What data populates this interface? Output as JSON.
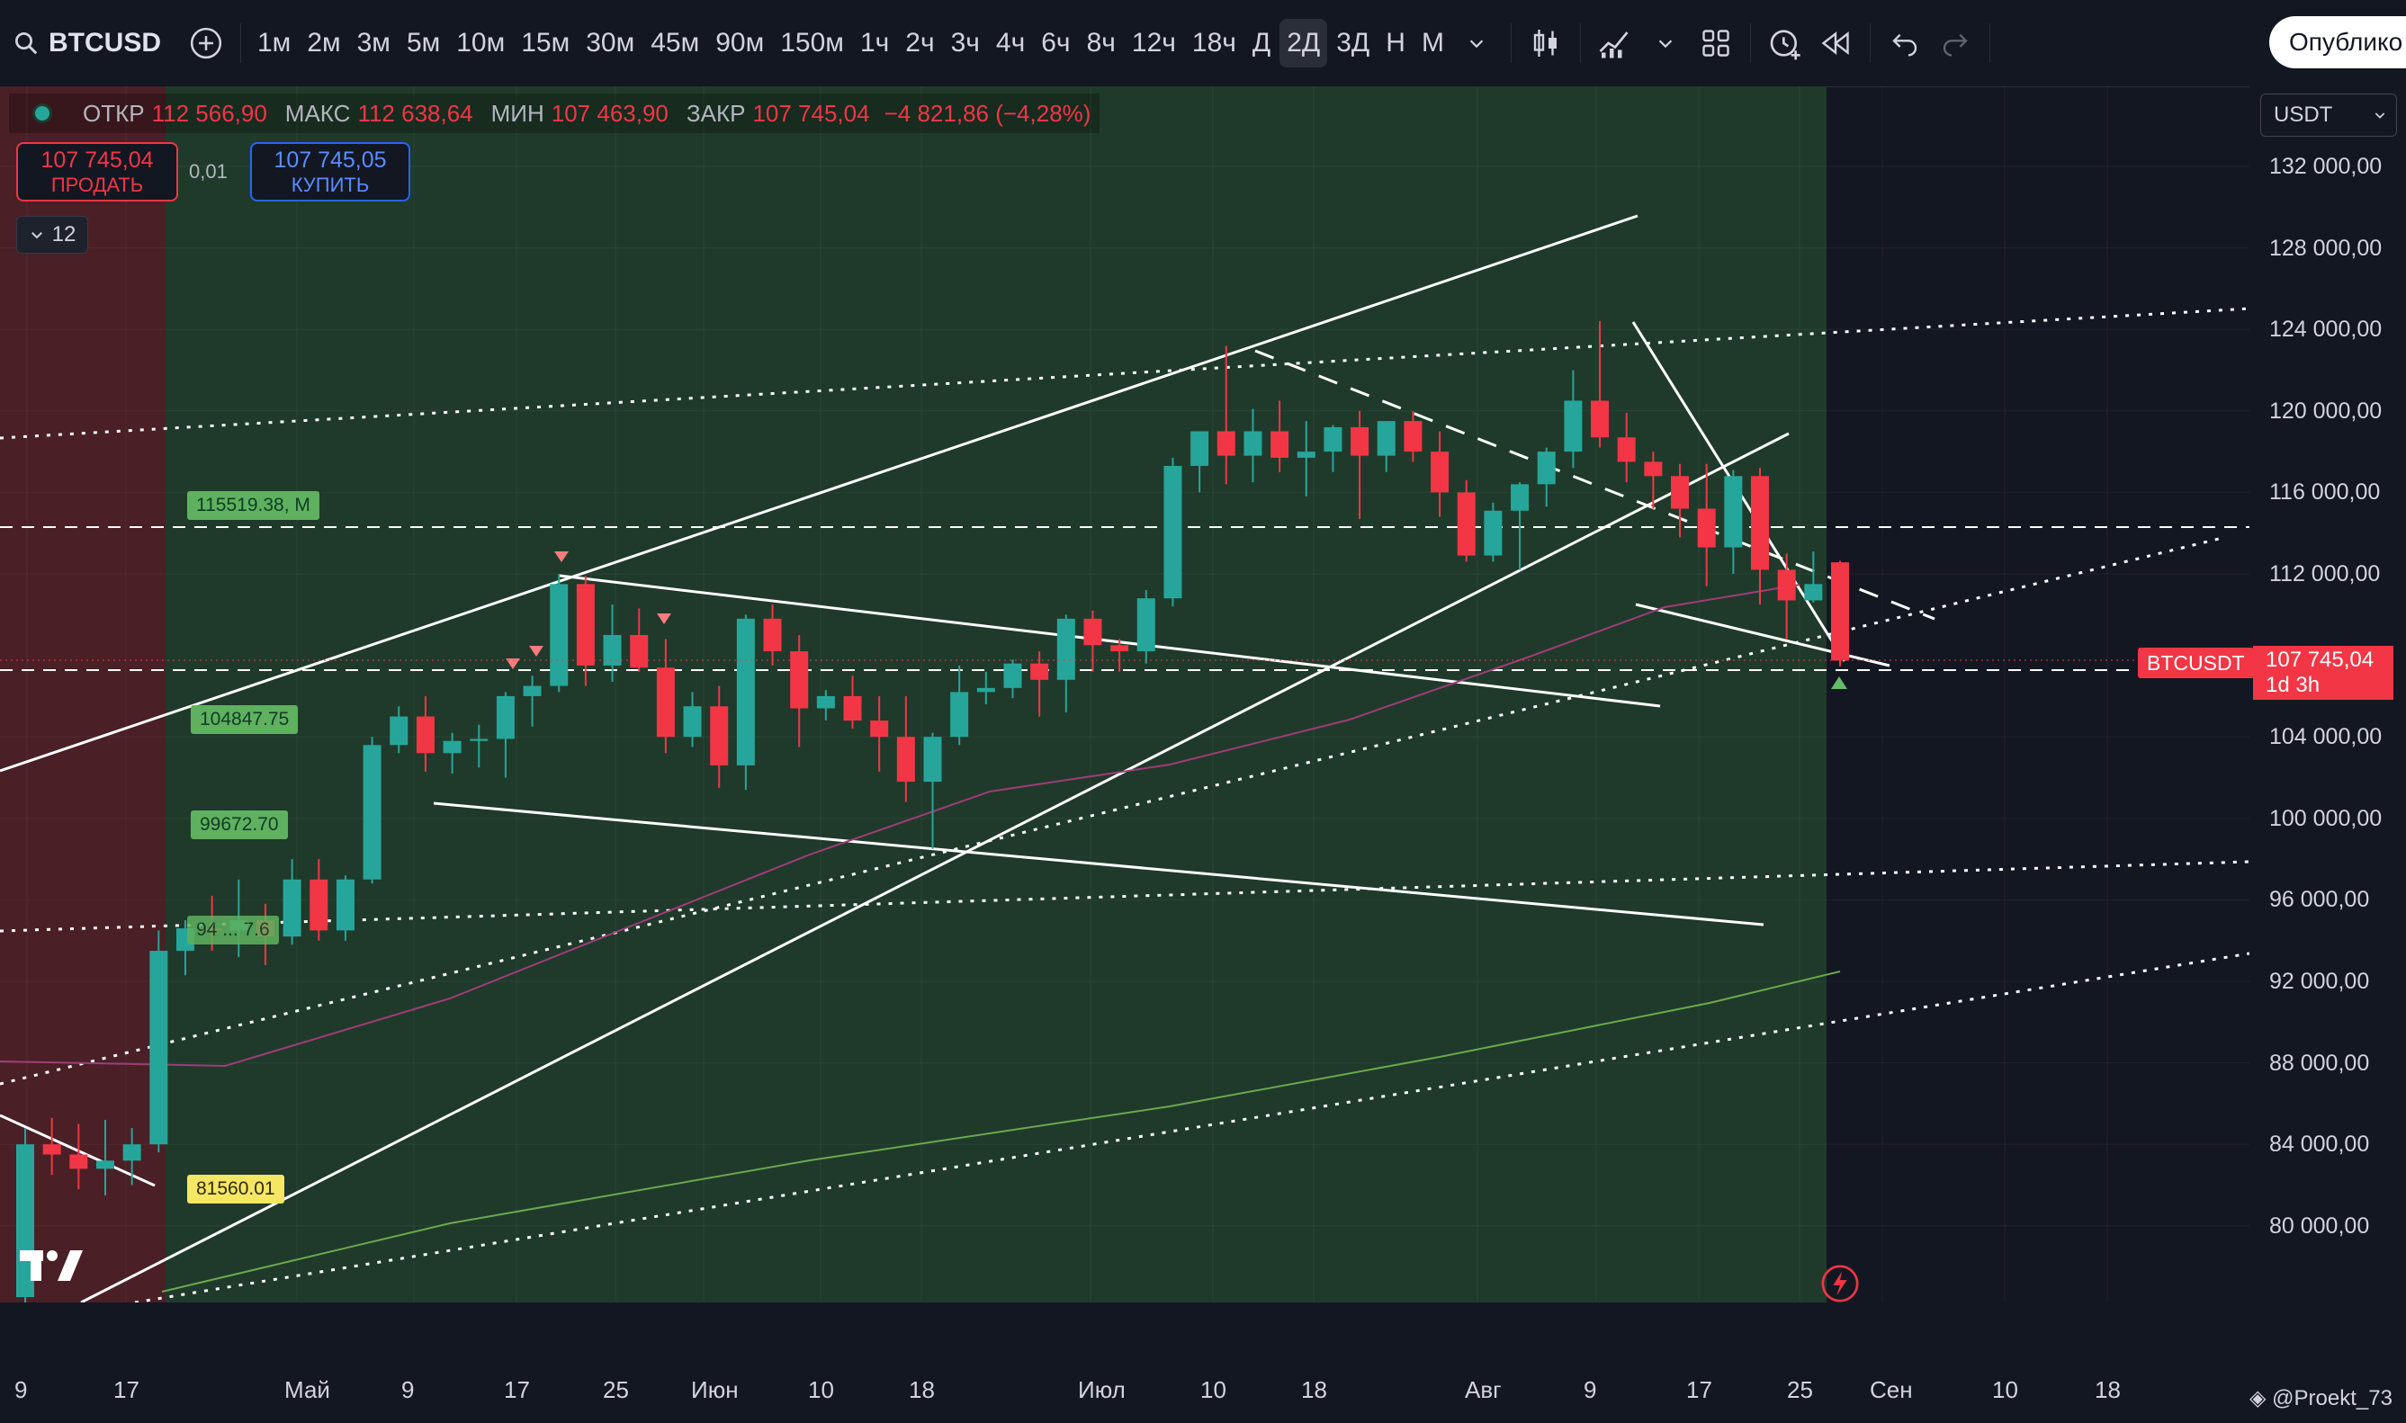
{
  "toolbar": {
    "symbol": "BTCUSD",
    "timeframes": [
      "1м",
      "2м",
      "3м",
      "5м",
      "10м",
      "15м",
      "30м",
      "45м",
      "90м",
      "150м",
      "1ч",
      "2ч",
      "3ч",
      "4ч",
      "6ч",
      "8ч",
      "12ч",
      "18ч",
      "Д",
      "2Д",
      "3Д",
      "Н",
      "М"
    ],
    "active_timeframe": "2Д",
    "publish_label": "Опублико"
  },
  "legend": {
    "open_label": "ОТКР",
    "open": "112 566,90",
    "high_label": "МАКС",
    "high": "112 638,64",
    "low_label": "МИН",
    "low": "107 463,90",
    "close_label": "ЗАКР",
    "close": "107 745,04",
    "change": "−4 821,86 (−4,28%)"
  },
  "trade": {
    "sell_price": "107 745,04",
    "sell_label": "ПРОДАТЬ",
    "quantity": "0,01",
    "buy_price": "107 745,05",
    "buy_label": "КУПИТЬ"
  },
  "indicators_count": "12",
  "currency": "USDT",
  "price_axis": [
    "132 000,00",
    "128 000,00",
    "124 000,00",
    "120 000,00",
    "116 000,00",
    "112 000,00",
    "104 000,00",
    "100 000,00",
    "96 000,00",
    "92 000,00",
    "88 000,00",
    "84 000,00",
    "80 000,00"
  ],
  "current_price": {
    "symbol": "BTCUSDT",
    "value": "107 745,04",
    "countdown": "1d 3h"
  },
  "level_labels": [
    "115519.38, M",
    "104847.75",
    "99672.70",
    "94 ... 7.6",
    "81560.01"
  ],
  "time_axis": [
    "9",
    "17",
    "Май",
    "9",
    "17",
    "25",
    "Июн",
    "10",
    "18",
    "Июл",
    "10",
    "18",
    "Авг",
    "9",
    "17",
    "25",
    "Сен",
    "10",
    "18"
  ],
  "watermark": "@Proekt_73",
  "colors": {
    "up": "#26a69a",
    "down": "#f23645",
    "bg": "#131722",
    "zone_green": "#1f3a2a",
    "zone_red": "#4a1f26"
  },
  "chart_data": {
    "type": "candlestick",
    "symbol": "BTCUSD",
    "interval": "2Д",
    "ylim": [
      78000,
      133500
    ],
    "candles": [
      [
        76500,
        84800,
        75000,
        84000
      ],
      [
        84000,
        85300,
        82500,
        83500
      ],
      [
        83500,
        85000,
        81800,
        82800
      ],
      [
        82800,
        85200,
        81500,
        83200
      ],
      [
        83200,
        84800,
        82000,
        84000
      ],
      [
        84000,
        94500,
        83600,
        93500
      ],
      [
        93500,
        95000,
        92300,
        94600
      ],
      [
        94600,
        96200,
        93500,
        94500
      ],
      [
        94500,
        97000,
        93200,
        95000
      ],
      [
        95000,
        95800,
        92800,
        94200
      ],
      [
        94200,
        98000,
        93800,
        97000
      ],
      [
        97000,
        98000,
        94000,
        94500
      ],
      [
        94500,
        97200,
        94000,
        97000
      ],
      [
        97000,
        104000,
        96800,
        103600
      ],
      [
        103600,
        105500,
        103200,
        105000
      ],
      [
        105000,
        106000,
        102300,
        103200
      ],
      [
        103200,
        104200,
        102200,
        103800
      ],
      [
        103800,
        104600,
        102500,
        103900
      ],
      [
        103900,
        106200,
        102000,
        106000
      ],
      [
        106000,
        107000,
        104500,
        106500
      ],
      [
        106500,
        112000,
        106200,
        111500
      ],
      [
        111500,
        111900,
        106500,
        107500
      ],
      [
        107500,
        110500,
        106700,
        109000
      ],
      [
        109000,
        110300,
        107200,
        107400
      ],
      [
        107400,
        108800,
        103200,
        104000
      ],
      [
        104000,
        106200,
        103500,
        105500
      ],
      [
        105500,
        106500,
        101500,
        102600
      ],
      [
        102600,
        110000,
        101400,
        109800
      ],
      [
        109800,
        110500,
        107500,
        108200
      ],
      [
        108200,
        109000,
        103500,
        105400
      ],
      [
        105400,
        106300,
        104800,
        106000
      ],
      [
        106000,
        107000,
        104400,
        104800
      ],
      [
        104800,
        106000,
        102300,
        104000
      ],
      [
        104000,
        106000,
        100800,
        101800
      ],
      [
        101800,
        104200,
        98500,
        104000
      ],
      [
        104000,
        107500,
        103600,
        106200
      ],
      [
        106200,
        107200,
        105600,
        106400
      ],
      [
        106400,
        107800,
        105900,
        107600
      ],
      [
        107600,
        108200,
        105000,
        106800
      ],
      [
        106800,
        110000,
        105200,
        109800
      ],
      [
        109800,
        110200,
        107200,
        108500
      ],
      [
        108500,
        108800,
        107200,
        108200
      ],
      [
        108200,
        111200,
        107600,
        110800
      ],
      [
        110800,
        117700,
        110400,
        117300
      ],
      [
        117300,
        119000,
        116000,
        119000
      ],
      [
        119000,
        123200,
        116400,
        117800
      ],
      [
        117800,
        120100,
        116500,
        119000
      ],
      [
        119000,
        120500,
        117000,
        117700
      ],
      [
        117700,
        119500,
        115800,
        118000
      ],
      [
        118000,
        119300,
        117000,
        119200
      ],
      [
        119200,
        120000,
        114700,
        117800
      ],
      [
        117800,
        119500,
        117000,
        119500
      ],
      [
        119500,
        120000,
        117500,
        118000
      ],
      [
        118000,
        119000,
        114800,
        116000
      ],
      [
        116000,
        116600,
        112600,
        112900
      ],
      [
        112900,
        115500,
        112600,
        115100
      ],
      [
        115100,
        116500,
        112200,
        116400
      ],
      [
        116400,
        118200,
        115300,
        118000
      ],
      [
        118000,
        122000,
        117200,
        120500
      ],
      [
        120500,
        124400,
        118200,
        118700
      ],
      [
        118700,
        119900,
        116500,
        117500
      ],
      [
        117500,
        118000,
        115200,
        116800
      ],
      [
        116800,
        117400,
        113800,
        115200
      ],
      [
        115200,
        117400,
        111400,
        113300
      ],
      [
        113300,
        117100,
        112000,
        116800
      ],
      [
        116800,
        117200,
        110500,
        112200
      ],
      [
        112200,
        113000,
        108800,
        110700
      ],
      [
        110700,
        113100,
        110600,
        111500
      ],
      [
        112567,
        112639,
        107464,
        107745
      ]
    ]
  }
}
